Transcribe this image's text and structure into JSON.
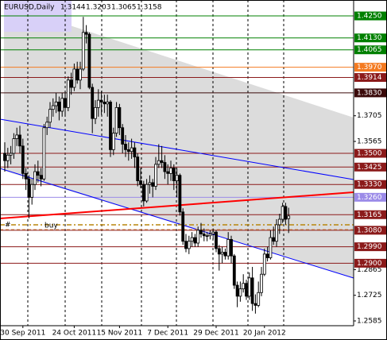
{
  "chart_data": {
    "type": "candlestick",
    "symbol": "EURUSD,Daily",
    "ohlc": [
      1.3144,
      1.3203,
      1.3065,
      1.3158
    ],
    "annotations": [
      "#",
      "buy"
    ],
    "up_color": "#ffffff",
    "down_color": "#000000",
    "ylim": [
      1.2559,
      1.4337
    ],
    "yticks": [
      1.3705,
      1.3565,
      1.2865,
      1.2725,
      1.2585
    ],
    "levels": [
      {
        "value": 1.425,
        "label": "1.4250",
        "color": "#008000"
      },
      {
        "value": 1.413,
        "label": "1.4130",
        "color": "#008000"
      },
      {
        "value": 1.4065,
        "color": "#008000"
      },
      {
        "value": 1.397,
        "label": "1.3970",
        "color": "#f47a20"
      },
      {
        "value": 1.3914,
        "color": "#8b1a1a"
      },
      {
        "value": 1.383,
        "label": "1.3830",
        "color": "#3a0a0a"
      },
      {
        "value": 1.35,
        "label": "1.3500",
        "color": "#8b1a1a"
      },
      {
        "value": 1.3425,
        "color": "#8b1a1a"
      },
      {
        "value": 1.333,
        "label": "1.3330",
        "color": "#8b1a1a"
      },
      {
        "value": 1.326,
        "label": "1.3260",
        "color": "#9b8be8"
      },
      {
        "value": 1.3165,
        "color": "#8b1a1a"
      },
      {
        "value": 1.308,
        "label": "1.3080",
        "color": "#8b1a1a"
      },
      {
        "value": 1.299,
        "label": "1.2990",
        "color": "#8b1a1a"
      },
      {
        "value": 1.29,
        "label": "1.2900",
        "color": "#8b1a1a"
      }
    ],
    "categories": [
      null,
      null,
      null,
      null,
      null,
      null,
      "30 Sep 2011",
      null,
      null,
      null,
      null,
      null,
      null,
      null,
      null,
      null,
      null,
      null,
      null,
      null,
      null,
      null,
      null,
      "24 Oct 2011",
      null,
      null,
      null,
      null,
      null,
      null,
      null,
      null,
      null,
      null,
      null,
      null,
      null,
      null,
      "15 Nov 2011",
      null,
      null,
      null,
      null,
      null,
      null,
      null,
      null,
      null,
      null,
      null,
      null,
      null,
      null,
      null,
      "7 Dec 2011",
      null,
      null,
      null,
      null,
      null,
      null,
      null,
      null,
      null,
      null,
      null,
      null,
      null,
      null,
      null,
      "29 Dec 2011",
      null,
      null,
      null,
      null,
      null,
      null,
      null,
      null,
      null,
      null,
      null,
      null,
      null,
      null,
      null,
      "20 Jan 2012",
      null,
      null,
      null,
      null,
      null,
      null,
      null,
      null
    ],
    "candles": [
      [
        1.35,
        1.356,
        1.34,
        1.346
      ],
      [
        1.346,
        1.353,
        1.342,
        1.349
      ],
      [
        1.349,
        1.354,
        1.344,
        1.35
      ],
      [
        1.35,
        1.361,
        1.347,
        1.358
      ],
      [
        1.358,
        1.364,
        1.354,
        1.36
      ],
      [
        1.36,
        1.365,
        1.35,
        1.354
      ],
      [
        1.354,
        1.358,
        1.336,
        1.339
      ],
      [
        1.339,
        1.342,
        1.33,
        1.336
      ],
      [
        1.336,
        1.338,
        1.3145,
        1.326
      ],
      [
        1.326,
        1.336,
        1.322,
        1.333
      ],
      [
        1.333,
        1.344,
        1.33,
        1.34
      ],
      [
        1.34,
        1.346,
        1.334,
        1.338
      ],
      [
        1.338,
        1.342,
        1.332,
        1.336
      ],
      [
        1.336,
        1.366,
        1.335,
        1.364
      ],
      [
        1.364,
        1.37,
        1.36,
        1.367
      ],
      [
        1.367,
        1.378,
        1.364,
        1.374
      ],
      [
        1.374,
        1.38,
        1.37,
        1.376
      ],
      [
        1.376,
        1.383,
        1.372,
        1.378
      ],
      [
        1.378,
        1.381,
        1.368,
        1.373
      ],
      [
        1.373,
        1.383,
        1.37,
        1.38
      ],
      [
        1.38,
        1.384,
        1.37,
        1.375
      ],
      [
        1.375,
        1.392,
        1.373,
        1.39
      ],
      [
        1.39,
        1.394,
        1.382,
        1.386
      ],
      [
        1.386,
        1.399,
        1.384,
        1.396
      ],
      [
        1.396,
        1.4,
        1.388,
        1.39
      ],
      [
        1.39,
        1.4,
        1.385,
        1.396
      ],
      [
        1.396,
        1.4245,
        1.395,
        1.416
      ],
      [
        1.416,
        1.42,
        1.41,
        1.415
      ],
      [
        1.415,
        1.416,
        1.385,
        1.386
      ],
      [
        1.386,
        1.388,
        1.361,
        1.369
      ],
      [
        1.369,
        1.379,
        1.366,
        1.375
      ],
      [
        1.375,
        1.385,
        1.37,
        1.379
      ],
      [
        1.379,
        1.384,
        1.371,
        1.378
      ],
      [
        1.378,
        1.382,
        1.372,
        1.377
      ],
      [
        1.377,
        1.382,
        1.37,
        1.378
      ],
      [
        1.378,
        1.379,
        1.348,
        1.352
      ],
      [
        1.352,
        1.364,
        1.349,
        1.361
      ],
      [
        1.361,
        1.378,
        1.359,
        1.375
      ],
      [
        1.375,
        1.377,
        1.36,
        1.364
      ],
      [
        1.364,
        1.366,
        1.35,
        1.355
      ],
      [
        1.355,
        1.36,
        1.348,
        1.352
      ],
      [
        1.352,
        1.356,
        1.346,
        1.351
      ],
      [
        1.351,
        1.358,
        1.347,
        1.353
      ],
      [
        1.353,
        1.356,
        1.342,
        1.348
      ],
      [
        1.348,
        1.35,
        1.332,
        1.335
      ],
      [
        1.335,
        1.342,
        1.331,
        1.333
      ],
      [
        1.333,
        1.335,
        1.321,
        1.324
      ],
      [
        1.324,
        1.336,
        1.323,
        1.333
      ],
      [
        1.333,
        1.338,
        1.328,
        1.334
      ],
      [
        1.334,
        1.336,
        1.326,
        1.332
      ],
      [
        1.332,
        1.348,
        1.33,
        1.344
      ],
      [
        1.344,
        1.355,
        1.342,
        1.346
      ],
      [
        1.346,
        1.354,
        1.342,
        1.345
      ],
      [
        1.345,
        1.349,
        1.336,
        1.34
      ],
      [
        1.34,
        1.344,
        1.333,
        1.339
      ],
      [
        1.339,
        1.346,
        1.335,
        1.342
      ],
      [
        1.342,
        1.344,
        1.33,
        1.335
      ],
      [
        1.335,
        1.342,
        1.326,
        1.338
      ],
      [
        1.338,
        1.339,
        1.316,
        1.318
      ],
      [
        1.318,
        1.32,
        1.3,
        1.302
      ],
      [
        1.302,
        1.306,
        1.296,
        1.298
      ],
      [
        1.298,
        1.305,
        1.295,
        1.302
      ],
      [
        1.302,
        1.307,
        1.299,
        1.304
      ],
      [
        1.304,
        1.306,
        1.299,
        1.301
      ],
      [
        1.301,
        1.31,
        1.299,
        1.308
      ],
      [
        1.308,
        1.312,
        1.304,
        1.306
      ],
      [
        1.306,
        1.309,
        1.302,
        1.305
      ],
      [
        1.305,
        1.307,
        1.302,
        1.305
      ],
      [
        1.305,
        1.308,
        1.303,
        1.306
      ],
      [
        1.306,
        1.309,
        1.303,
        1.307
      ],
      [
        1.307,
        1.308,
        1.296,
        1.298
      ],
      [
        1.298,
        1.3,
        1.286,
        1.295
      ],
      [
        1.295,
        1.299,
        1.29,
        1.296
      ],
      [
        1.296,
        1.298,
        1.292,
        1.294
      ],
      [
        1.294,
        1.307,
        1.292,
        1.303
      ],
      [
        1.303,
        1.305,
        1.29,
        1.294
      ],
      [
        1.294,
        1.295,
        1.276,
        1.278
      ],
      [
        1.278,
        1.28,
        1.266,
        1.272
      ],
      [
        1.272,
        1.28,
        1.269,
        1.276
      ],
      [
        1.276,
        1.284,
        1.274,
        1.279
      ],
      [
        1.279,
        1.281,
        1.27,
        1.272
      ],
      [
        1.272,
        1.285,
        1.27,
        1.282
      ],
      [
        1.282,
        1.288,
        1.264,
        1.268
      ],
      [
        1.268,
        1.273,
        1.2625,
        1.267
      ],
      [
        1.267,
        1.28,
        1.266,
        1.274
      ],
      [
        1.274,
        1.288,
        1.272,
        1.284
      ],
      [
        1.284,
        1.298,
        1.283,
        1.295
      ],
      [
        1.295,
        1.299,
        1.291,
        1.293
      ],
      [
        1.293,
        1.308,
        1.292,
        1.304
      ],
      [
        1.304,
        1.31,
        1.3,
        1.302
      ],
      [
        1.302,
        1.314,
        1.299,
        1.311
      ],
      [
        1.311,
        1.317,
        1.306,
        1.314
      ],
      [
        1.314,
        1.323,
        1.312,
        1.321
      ],
      [
        1.321,
        1.323,
        1.311,
        1.314
      ],
      [
        1.3144,
        1.3203,
        1.3065,
        1.3158
      ]
    ]
  }
}
